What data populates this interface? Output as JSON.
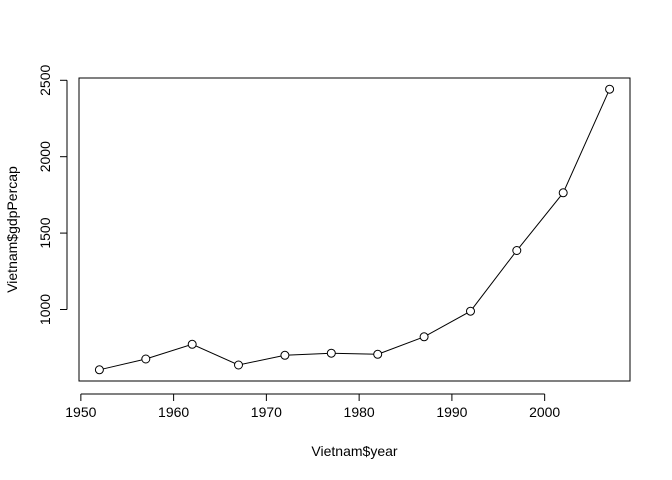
{
  "chart_data": {
    "type": "line",
    "title": "",
    "xlabel": "Vietnam$year",
    "ylabel": "Vietnam$gdpPercap",
    "x": [
      1952,
      1957,
      1962,
      1967,
      1972,
      1977,
      1982,
      1987,
      1992,
      1997,
      2002,
      2007
    ],
    "series": [
      {
        "values": [
          605,
          676,
          772,
          637,
          700,
          714,
          707,
          821,
          989,
          1386,
          1764,
          2442
        ]
      }
    ],
    "xlim": [
      1949.8,
      2009.2
    ],
    "ylim": [
      532,
      2515
    ],
    "x_ticks": [
      "1950",
      "1960",
      "1970",
      "1980",
      "1990",
      "2000"
    ],
    "y_ticks": [
      "1000",
      "1500",
      "2000",
      "2500"
    ],
    "grid": false,
    "legend": "none",
    "marker": "open-circle",
    "line_color": "#000000"
  }
}
